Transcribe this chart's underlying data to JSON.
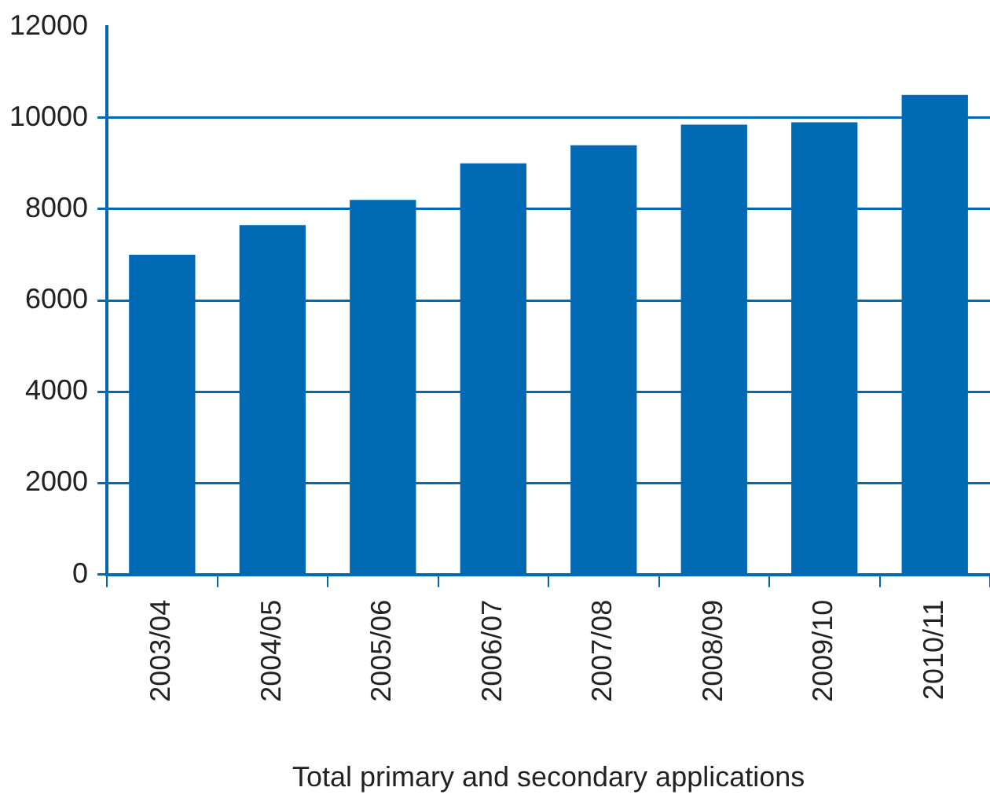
{
  "chart_data": {
    "type": "bar",
    "xlabel": "Total primary and secondary applications",
    "categories": [
      "2003/04",
      "2004/05",
      "2005/06",
      "2006/07",
      "2007/08",
      "2008/09",
      "2009/10",
      "2010/11"
    ],
    "values": [
      7000,
      7650,
      8200,
      9000,
      9400,
      9850,
      9900,
      10500
    ],
    "color": "#0069b4",
    "ylim": [
      0,
      12000
    ],
    "yticks": [
      0,
      2000,
      4000,
      6000,
      8000,
      10000,
      12000
    ],
    "grid": "y"
  }
}
